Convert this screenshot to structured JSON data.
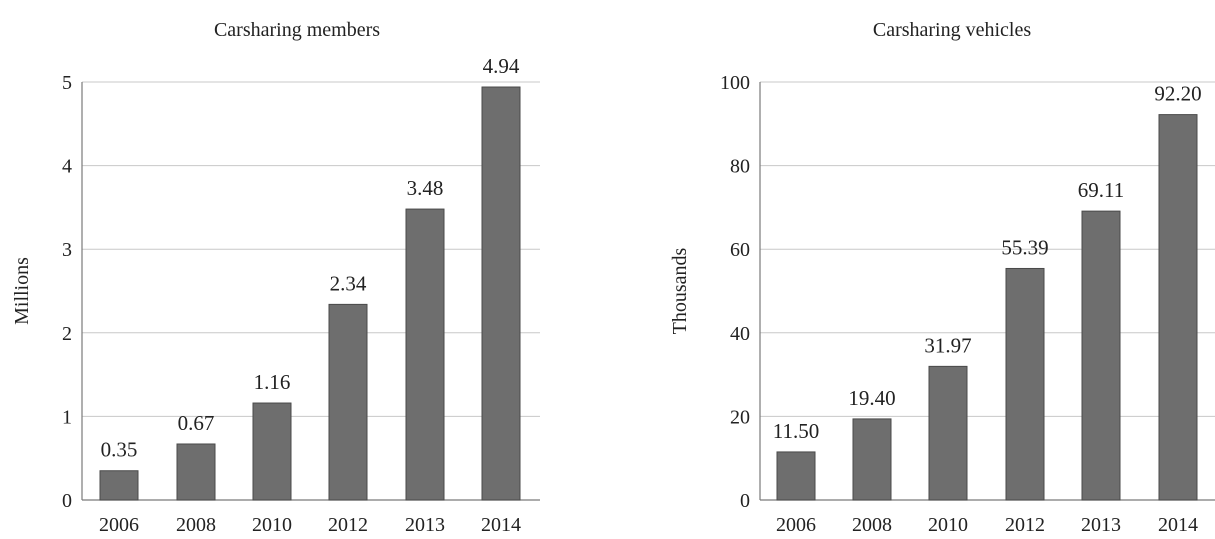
{
  "chart_data": [
    {
      "type": "bar",
      "title": "Carsharing members",
      "ylabel": "Millions",
      "xlabel": "",
      "categories": [
        "2006",
        "2008",
        "2010",
        "2012",
        "2013",
        "2014"
      ],
      "values": [
        0.35,
        0.67,
        1.16,
        2.34,
        3.48,
        4.94
      ],
      "value_labels": [
        "0.35",
        "0.67",
        "1.16",
        "2.34",
        "3.48",
        "4.94"
      ],
      "ylim": [
        0,
        5
      ],
      "yticks": [
        0,
        1,
        2,
        3,
        4,
        5
      ],
      "grid": true,
      "bar_color": "#6e6e6e"
    },
    {
      "type": "bar",
      "title": "Carsharing vehicles",
      "ylabel": "Thousands",
      "xlabel": "",
      "categories": [
        "2006",
        "2008",
        "2010",
        "2012",
        "2013",
        "2014"
      ],
      "values": [
        11.5,
        19.4,
        31.97,
        55.39,
        69.11,
        92.2
      ],
      "value_labels": [
        "11.50",
        "19.40",
        "31.97",
        "55.39",
        "69.11",
        "92.20"
      ],
      "ylim": [
        0,
        100
      ],
      "yticks": [
        0,
        20,
        40,
        60,
        80,
        100
      ],
      "grid": true,
      "bar_color": "#6e6e6e"
    }
  ]
}
